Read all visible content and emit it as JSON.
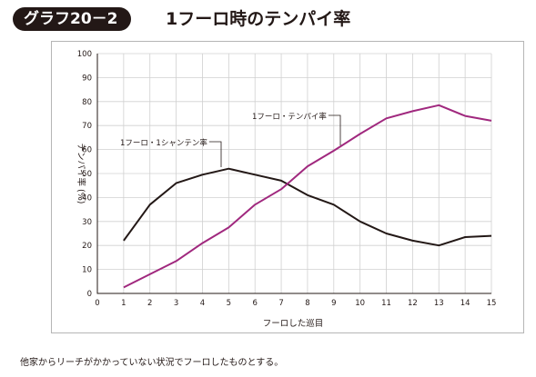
{
  "header": {
    "badge_label": "グラフ20－2",
    "title": "1フーロ時のテンパイ率"
  },
  "note": "他家からリーチがかかっていない状況でフーロしたものとする。",
  "colors": {
    "badge_bg": "#231816",
    "tenpai_line": "#a0287e",
    "ishanten_line": "#231816",
    "grid": "#d0d0d0"
  },
  "chart_data": {
    "type": "line",
    "title": "",
    "xlabel": "フーロした巡目",
    "ylabel": "テンパイ率 (%)",
    "xlim": [
      0,
      15
    ],
    "ylim": [
      0,
      100
    ],
    "x_ticks": [
      0,
      1,
      2,
      3,
      4,
      5,
      6,
      7,
      8,
      9,
      10,
      11,
      12,
      13,
      14,
      15
    ],
    "y_ticks": [
      0,
      10,
      20,
      30,
      40,
      50,
      60,
      70,
      80,
      90,
      100
    ],
    "grid": true,
    "x": [
      1,
      2,
      3,
      4,
      5,
      6,
      7,
      8,
      9,
      10,
      11,
      12,
      13,
      14,
      15
    ],
    "series": [
      {
        "name": "1フーロ・1シャンテン率",
        "color": "#231816",
        "values": [
          22,
          37,
          46,
          49.5,
          52,
          49.5,
          47,
          41,
          37,
          30,
          25,
          22,
          20,
          23.5,
          24
        ]
      },
      {
        "name": "1フーロ・テンパイ率",
        "color": "#a0287e",
        "values": [
          2.5,
          8,
          13.5,
          21,
          27.5,
          37,
          43.5,
          53,
          59.5,
          66.5,
          73,
          76,
          78.5,
          74,
          72
        ]
      }
    ]
  }
}
